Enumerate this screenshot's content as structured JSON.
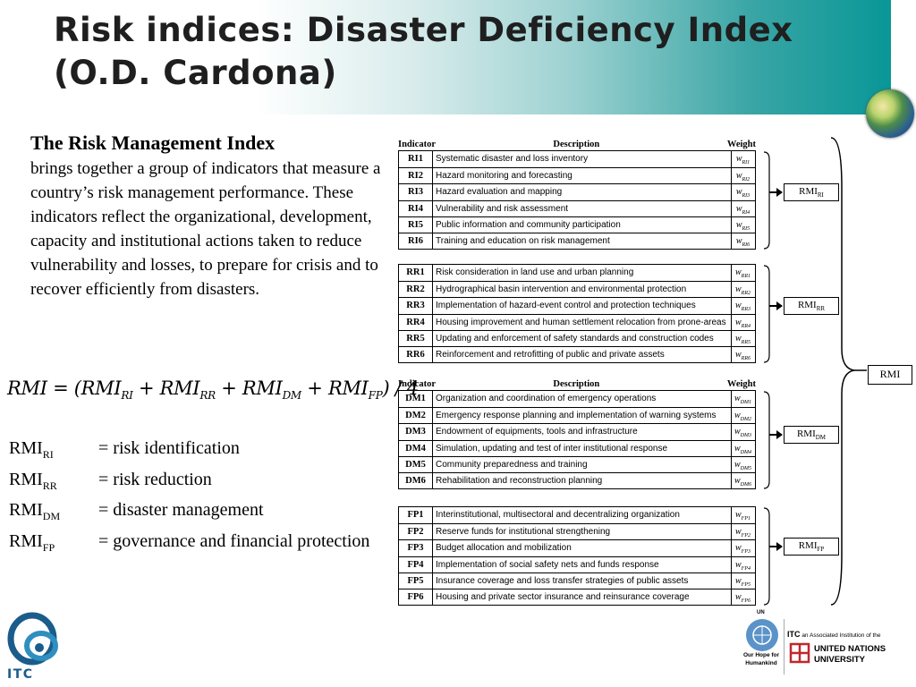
{
  "title": "Risk indices: Disaster Deficiency Index (O.D. Cardona)",
  "intro": {
    "heading": "The Risk Management Index",
    "body": "brings together a group of indicators that measure a country’s risk management performance. These indicators reflect the organizational, development, capacity and institutional actions taken to reduce vulnerability and losses, to prepare for crisis and to recover efficiently from disasters."
  },
  "formula": {
    "lhs": "RMI",
    "terms": [
      {
        "base": "RMI",
        "sub": "RI"
      },
      {
        "base": "RMI",
        "sub": "RR"
      },
      {
        "base": "RMI",
        "sub": "DM"
      },
      {
        "base": "RMI",
        "sub": "FP"
      }
    ],
    "divisor": "4"
  },
  "definitions": [
    {
      "base": "RMI",
      "sub": "RI",
      "text": "= risk identification"
    },
    {
      "base": "RMI",
      "sub": "RR",
      "text": "= risk reduction"
    },
    {
      "base": "RMI",
      "sub": "DM",
      "text": "= disaster management"
    },
    {
      "base": "RMI",
      "sub": "FP",
      "text": "= governance and financial protection"
    }
  ],
  "table_headers": {
    "indicator": "Indicator",
    "description": "Description",
    "weight": "Weight"
  },
  "groups": [
    {
      "id": "RI",
      "box_label": "RMI",
      "box_sub": "RI",
      "rows": [
        {
          "code": "RI1",
          "desc": "Systematic disaster and loss inventory",
          "w": "w",
          "wsub": "RI1"
        },
        {
          "code": "RI2",
          "desc": "Hazard monitoring and forecasting",
          "w": "w",
          "wsub": "RI2"
        },
        {
          "code": "RI3",
          "desc": "Hazard evaluation and mapping",
          "w": "w",
          "wsub": "RI3"
        },
        {
          "code": "RI4",
          "desc": "Vulnerability and risk assessment",
          "w": "w",
          "wsub": "RI4"
        },
        {
          "code": "RI5",
          "desc": "Public information and community participation",
          "w": "w",
          "wsub": "RI5"
        },
        {
          "code": "RI6",
          "desc": "Training and education on risk management",
          "w": "w",
          "wsub": "RI6"
        }
      ]
    },
    {
      "id": "RR",
      "box_label": "RMI",
      "box_sub": "RR",
      "rows": [
        {
          "code": "RR1",
          "desc": "Risk consideration in land use and urban planning",
          "w": "w",
          "wsub": "RR1"
        },
        {
          "code": "RR2",
          "desc": "Hydrographical basin intervention and environmental protection",
          "w": "w",
          "wsub": "RR2"
        },
        {
          "code": "RR3",
          "desc": "Implementation of hazard-event control and protection techniques",
          "w": "w",
          "wsub": "RR3"
        },
        {
          "code": "RR4",
          "desc": "Housing improvement and human settlement relocation from prone-areas",
          "w": "w",
          "wsub": "RR4"
        },
        {
          "code": "RR5",
          "desc": "Updating and enforcement of safety standards and construction codes",
          "w": "w",
          "wsub": "RR5"
        },
        {
          "code": "RR6",
          "desc": "Reinforcement and retrofitting of public and private assets",
          "w": "w",
          "wsub": "RR6"
        }
      ]
    },
    {
      "id": "DM",
      "box_label": "RMI",
      "box_sub": "DM",
      "rows": [
        {
          "code": "DM1",
          "desc": "Organization and coordination of emergency operations",
          "w": "w",
          "wsub": "DM1"
        },
        {
          "code": "DM2",
          "desc": "Emergency response planning and implementation of warning systems",
          "w": "w",
          "wsub": "DM2"
        },
        {
          "code": "DM3",
          "desc": "Endowment of equipments, tools and infrastructure",
          "w": "w",
          "wsub": "DM3"
        },
        {
          "code": "DM4",
          "desc": "Simulation, updating and test of inter institutional response",
          "w": "w",
          "wsub": "DM4"
        },
        {
          "code": "DM5",
          "desc": "Community preparedness and training",
          "w": "w",
          "wsub": "DM5"
        },
        {
          "code": "DM6",
          "desc": "Rehabilitation and reconstruction planning",
          "w": "w",
          "wsub": "DM6"
        }
      ]
    },
    {
      "id": "FP",
      "box_label": "RMI",
      "box_sub": "FP",
      "rows": [
        {
          "code": "FP1",
          "desc": "Interinstitutional, multisectoral and decentralizing organization",
          "w": "w",
          "wsub": "FP1"
        },
        {
          "code": "FP2",
          "desc": "Reserve funds for institutional strengthening",
          "w": "w",
          "wsub": "FP2"
        },
        {
          "code": "FP3",
          "desc": "Budget allocation and mobilization",
          "w": "w",
          "wsub": "FP3"
        },
        {
          "code": "FP4",
          "desc": "Implementation of social safety nets and funds response",
          "w": "w",
          "wsub": "FP4"
        },
        {
          "code": "FP5",
          "desc": "Insurance coverage and loss transfer strategies of public assets",
          "w": "w",
          "wsub": "FP5"
        },
        {
          "code": "FP6",
          "desc": "Housing and private sector insurance and reinsurance coverage",
          "w": "w",
          "wsub": "FP6"
        }
      ]
    }
  ],
  "total_box": "RMI",
  "footer": {
    "itc": "ITC",
    "un_label": "UN",
    "un_motto": "Our Hope for Humankind",
    "itc_assoc_brand": "ITC",
    "itc_assoc_text": "an Associated Institution of the",
    "unu_name_line1": "UNITED NATIONS",
    "unu_name_line2": "UNIVERSITY"
  },
  "colors": {
    "banner_teal": "#009494",
    "logo_blue": "#1a5c8c",
    "unu_red": "#c0282d"
  }
}
